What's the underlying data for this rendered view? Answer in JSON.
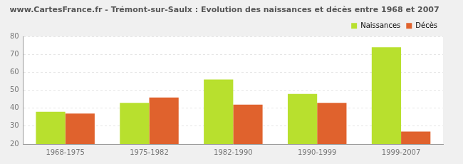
{
  "chart_data": {
    "type": "bar",
    "title": "www.CartesFrance.fr - Trémont-sur-Saulx : Evolution des naissances et décès entre 1968 et 2007",
    "categories": [
      "1968-1975",
      "1975-1982",
      "1982-1990",
      "1990-1999",
      "1999-2007"
    ],
    "series": [
      {
        "name": "Naissances",
        "color": "#b8e02e",
        "values": [
          38,
          43,
          56,
          48,
          74
        ]
      },
      {
        "name": "Décès",
        "color": "#e0622d",
        "values": [
          37,
          46,
          42,
          43,
          27
        ]
      }
    ],
    "ylim": [
      20,
      80
    ],
    "yticks": [
      20,
      30,
      40,
      50,
      60,
      70,
      80
    ],
    "grid": true,
    "legend": "upper right"
  }
}
